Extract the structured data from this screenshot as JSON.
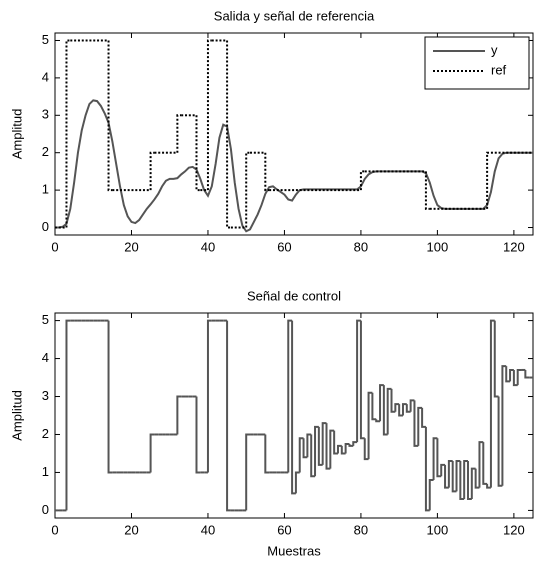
{
  "chart_data": [
    {
      "type": "line",
      "title": "Salida y señal de referencia",
      "ylabel": "Amplitud",
      "x": [
        0,
        1,
        2,
        3,
        4,
        5,
        6,
        7,
        8,
        9,
        10,
        11,
        12,
        13,
        14,
        15,
        16,
        17,
        18,
        19,
        20,
        21,
        22,
        23,
        24,
        25,
        26,
        27,
        28,
        29,
        30,
        31,
        32,
        33,
        34,
        35,
        36,
        37,
        38,
        39,
        40,
        41,
        42,
        43,
        44,
        45,
        46,
        47,
        48,
        49,
        50,
        51,
        52,
        53,
        54,
        55,
        56,
        57,
        58,
        59,
        60,
        61,
        62,
        63,
        64,
        65,
        66,
        67,
        68,
        69,
        70,
        71,
        72,
        73,
        74,
        75,
        76,
        77,
        78,
        79,
        80,
        81,
        82,
        83,
        84,
        85,
        86,
        87,
        88,
        89,
        90,
        91,
        92,
        93,
        94,
        95,
        96,
        97,
        98,
        99,
        100,
        101,
        102,
        103,
        104,
        105,
        106,
        107,
        108,
        109,
        110,
        111,
        112,
        113,
        114,
        115,
        116,
        117,
        118,
        119,
        120,
        121,
        122,
        123,
        124,
        125
      ],
      "series": [
        {
          "name": "y",
          "color": "#555555",
          "style": "solid",
          "drawstyle": "line",
          "values": [
            0,
            0,
            0.02,
            0.1,
            0.5,
            1.2,
            2,
            2.6,
            3,
            3.3,
            3.4,
            3.38,
            3.25,
            3.05,
            2.8,
            2.3,
            1.7,
            1.1,
            0.6,
            0.3,
            0.15,
            0.12,
            0.2,
            0.35,
            0.5,
            0.62,
            0.75,
            0.9,
            1.1,
            1.25,
            1.3,
            1.3,
            1.32,
            1.42,
            1.5,
            1.6,
            1.62,
            1.55,
            1.3,
            1,
            0.85,
            1.1,
            1.7,
            2.4,
            2.75,
            2.7,
            2.1,
            1.2,
            0.5,
            0.05,
            -0.1,
            -0.05,
            0.15,
            0.35,
            0.6,
            0.9,
            1.08,
            1.1,
            1.02,
            0.95,
            0.88,
            0.75,
            0.72,
            0.88,
            1,
            1.02,
            1.02,
            1.02,
            1.02,
            1.02,
            1.02,
            1.02,
            1.02,
            1.02,
            1.02,
            1.02,
            1.02,
            1.02,
            1.02,
            1.02,
            1.1,
            1.3,
            1.42,
            1.48,
            1.5,
            1.5,
            1.5,
            1.5,
            1.5,
            1.5,
            1.5,
            1.5,
            1.5,
            1.5,
            1.5,
            1.5,
            1.5,
            1.45,
            1.2,
            0.85,
            0.6,
            0.52,
            0.5,
            0.5,
            0.5,
            0.5,
            0.5,
            0.5,
            0.5,
            0.5,
            0.5,
            0.5,
            0.5,
            0.6,
            0.95,
            1.5,
            1.85,
            1.97,
            2,
            2,
            2,
            2,
            2,
            2,
            2,
            2
          ]
        },
        {
          "name": "ref",
          "color": "#000000",
          "style": "dotted",
          "drawstyle": "steps",
          "values": [
            0,
            0,
            0,
            5,
            5,
            5,
            5,
            5,
            5,
            5,
            5,
            5,
            5,
            5,
            1,
            1,
            1,
            1,
            1,
            1,
            1,
            1,
            1,
            1,
            1,
            2,
            2,
            2,
            2,
            2,
            2,
            2,
            3,
            3,
            3,
            3,
            3,
            1,
            1,
            1,
            5,
            5,
            5,
            5,
            5,
            0,
            0,
            0,
            0,
            0,
            2,
            2,
            2,
            2,
            2,
            1,
            1,
            1,
            1,
            1,
            1,
            1,
            1,
            1,
            1,
            1,
            1,
            1,
            1,
            1,
            1,
            1,
            1,
            1,
            1,
            1,
            1,
            1,
            1,
            1,
            1.5,
            1.5,
            1.5,
            1.5,
            1.5,
            1.5,
            1.5,
            1.5,
            1.5,
            1.5,
            1.5,
            1.5,
            1.5,
            1.5,
            1.5,
            1.5,
            1.5,
            0.5,
            0.5,
            0.5,
            0.5,
            0.5,
            0.5,
            0.5,
            0.5,
            0.5,
            0.5,
            0.5,
            0.5,
            0.5,
            0.5,
            0.5,
            0.5,
            2,
            2,
            2,
            2,
            2,
            2,
            2,
            2,
            2,
            2,
            2,
            2,
            2
          ]
        }
      ],
      "xlim": [
        0,
        125
      ],
      "xticks": [
        0,
        20,
        40,
        60,
        80,
        100,
        120
      ],
      "ylim": [
        -0.2,
        5.2
      ],
      "yticks": [
        0,
        1,
        2,
        3,
        4,
        5
      ],
      "legend": "upper right"
    },
    {
      "type": "line",
      "title": "Señal de control",
      "xlabel": "Muestras",
      "ylabel": "Amplitud",
      "x": [
        0,
        1,
        2,
        3,
        4,
        5,
        6,
        7,
        8,
        9,
        10,
        11,
        12,
        13,
        14,
        15,
        16,
        17,
        18,
        19,
        20,
        21,
        22,
        23,
        24,
        25,
        26,
        27,
        28,
        29,
        30,
        31,
        32,
        33,
        34,
        35,
        36,
        37,
        38,
        39,
        40,
        41,
        42,
        43,
        44,
        45,
        46,
        47,
        48,
        49,
        50,
        51,
        52,
        53,
        54,
        55,
        56,
        57,
        58,
        59,
        60,
        61,
        62,
        63,
        64,
        65,
        66,
        67,
        68,
        69,
        70,
        71,
        72,
        73,
        74,
        75,
        76,
        77,
        78,
        79,
        80,
        81,
        82,
        83,
        84,
        85,
        86,
        87,
        88,
        89,
        90,
        91,
        92,
        93,
        94,
        95,
        96,
        97,
        98,
        99,
        100,
        101,
        102,
        103,
        104,
        105,
        106,
        107,
        108,
        109,
        110,
        111,
        112,
        113,
        114,
        115,
        116,
        117,
        118,
        119,
        120,
        121,
        122,
        123,
        124,
        125
      ],
      "series": [
        {
          "color": "#555555",
          "style": "solid",
          "drawstyle": "steps",
          "values": [
            0,
            0,
            0,
            5,
            5,
            5,
            5,
            5,
            5,
            5,
            5,
            5,
            5,
            5,
            1,
            1,
            1,
            1,
            1,
            1,
            1,
            1,
            1,
            1,
            1,
            2,
            2,
            2,
            2,
            2,
            2,
            2,
            3,
            3,
            3,
            3,
            3,
            1,
            1,
            1,
            5,
            5,
            5,
            5,
            5,
            0,
            0,
            0,
            0,
            0,
            2,
            2,
            2,
            2,
            2,
            1,
            1,
            1,
            1,
            1,
            1,
            5,
            0.45,
            1,
            1.9,
            1.4,
            2,
            0.9,
            2.2,
            1.2,
            2.3,
            1.1,
            2.1,
            1.5,
            1.7,
            1.5,
            1.75,
            1.7,
            1.8,
            5,
            1.9,
            1.35,
            3.1,
            2.4,
            2.35,
            3.3,
            2,
            3.2,
            2.6,
            2.8,
            2.5,
            2.8,
            2.6,
            2.9,
            1.7,
            2.7,
            2.2,
            0,
            0.8,
            1.9,
            0.9,
            1.2,
            0.6,
            1.3,
            0.5,
            1.3,
            0.3,
            1.3,
            0.3,
            1.1,
            0.6,
            1.8,
            0.7,
            0.6,
            5,
            3,
            0.65,
            3.8,
            3.4,
            3.7,
            3.3,
            3.7,
            3.7,
            3.5,
            3.5,
            3.5
          ]
        }
      ],
      "xlim": [
        0,
        125
      ],
      "xticks": [
        0,
        20,
        40,
        60,
        80,
        100,
        120
      ],
      "ylim": [
        -0.2,
        5.2
      ],
      "yticks": [
        0,
        1,
        2,
        3,
        4,
        5
      ]
    }
  ]
}
